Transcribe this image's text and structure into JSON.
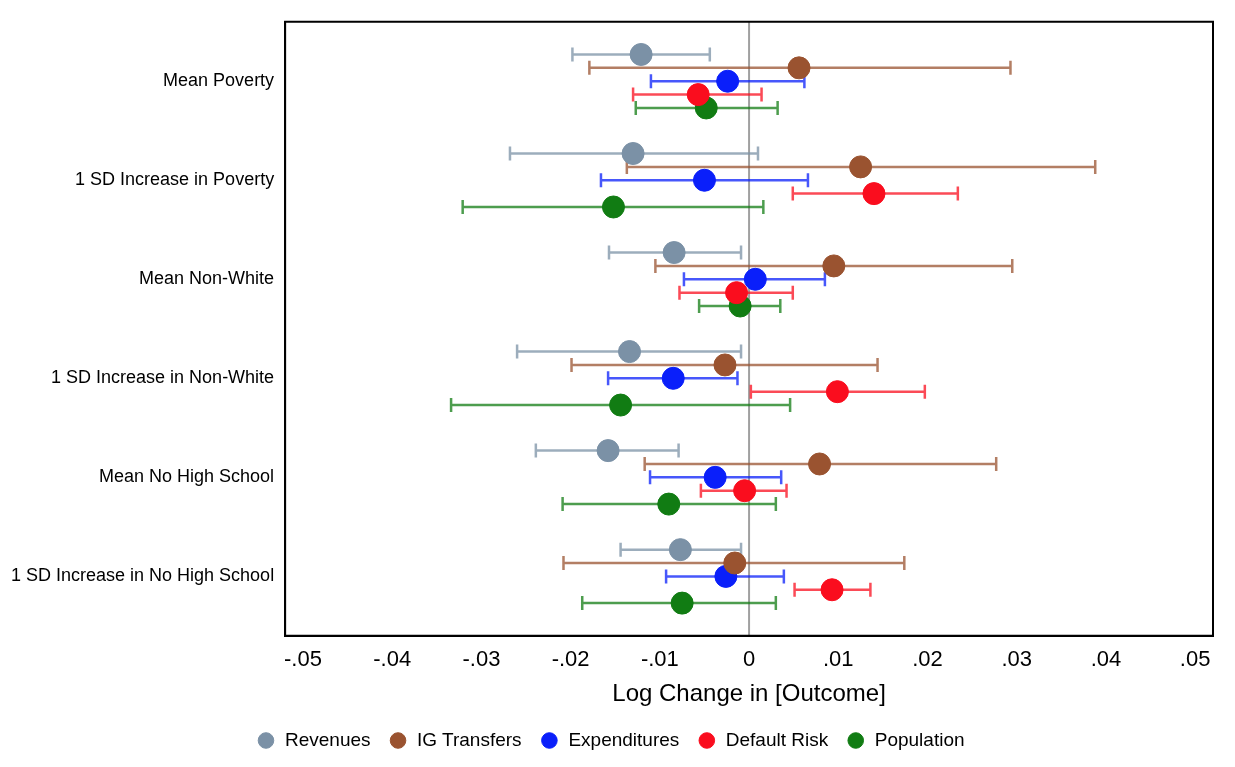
{
  "chart_data": {
    "type": "scatter",
    "orientation": "horizontal",
    "xlabel": "Log Change in [Outcome]",
    "categories": [
      "Mean Poverty",
      "1 SD Increase in Poverty",
      "Mean Non-White",
      "1 SD Increase in Non-White",
      "Mean No High School",
      "1 SD Increase in No High School"
    ],
    "series": [
      {
        "name": "Revenues",
        "color": "#7b91a6",
        "values": [
          -0.0121,
          -0.013,
          -0.0084,
          -0.0134,
          -0.0158,
          -0.0077
        ],
        "errors": [
          [
            -0.0198,
            -0.0044
          ],
          [
            -0.0268,
            0.001
          ],
          [
            -0.0157,
            -0.0009
          ],
          [
            -0.026,
            -0.0009
          ],
          [
            -0.0239,
            -0.0079
          ],
          [
            -0.0144,
            -0.0009
          ]
        ]
      },
      {
        "name": "IG Transfers",
        "color": "#9a5330",
        "values": [
          0.0056,
          0.0125,
          0.0095,
          -0.0027,
          0.0079,
          -0.0016
        ],
        "errors": [
          [
            -0.0179,
            0.0293
          ],
          [
            -0.0137,
            0.0388
          ],
          [
            -0.0105,
            0.0295
          ],
          [
            -0.0199,
            0.0144
          ],
          [
            -0.0117,
            0.0277
          ],
          [
            -0.0208,
            0.0174
          ]
        ]
      },
      {
        "name": "Expenditures",
        "color": "#0a1ffa",
        "values": [
          -0.0024,
          -0.005,
          0.0007,
          -0.0085,
          -0.0038,
          -0.0026
        ],
        "errors": [
          [
            -0.011,
            0.0062
          ],
          [
            -0.0166,
            0.0066
          ],
          [
            -0.0073,
            0.0085
          ],
          [
            -0.0158,
            -0.0013
          ],
          [
            -0.0111,
            0.0036
          ],
          [
            -0.0093,
            0.0039
          ]
        ]
      },
      {
        "name": "Default Risk",
        "color": "#fa0d1e",
        "values": [
          -0.0057,
          0.014,
          -0.0014,
          0.0099,
          -0.0005,
          0.0093
        ],
        "errors": [
          [
            -0.013,
            0.0014
          ],
          [
            0.0049,
            0.0234
          ],
          [
            -0.0078,
            0.0049
          ],
          [
            0.0002,
            0.0197
          ],
          [
            -0.0054,
            0.0042
          ],
          [
            0.0051,
            0.0136
          ]
        ]
      },
      {
        "name": "Population",
        "color": "#117c13",
        "values": [
          -0.0048,
          -0.0152,
          -0.001,
          -0.0144,
          -0.009,
          -0.0075
        ],
        "errors": [
          [
            -0.0127,
            0.0032
          ],
          [
            -0.0321,
            0.0016
          ],
          [
            -0.0056,
            0.0035
          ],
          [
            -0.0334,
            0.0046
          ],
          [
            -0.0209,
            0.003
          ],
          [
            -0.0187,
            0.003
          ]
        ]
      }
    ],
    "xlim": [
      -0.052,
      0.052
    ],
    "xticks": [
      {
        "value": -0.05,
        "label": "-.05"
      },
      {
        "value": -0.04,
        "label": "-.04"
      },
      {
        "value": -0.03,
        "label": "-.03"
      },
      {
        "value": -0.02,
        "label": "-.02"
      },
      {
        "value": -0.01,
        "label": "-.01"
      },
      0,
      {
        "value": 0.01,
        "label": ".01"
      },
      {
        "value": 0.02,
        "label": ".02"
      },
      {
        "value": 0.03,
        "label": ".03"
      },
      {
        "value": 0.04,
        "label": ".04"
      },
      {
        "value": 0.05,
        "label": ".05"
      }
    ],
    "ref_lines": [
      {
        "axis": "x",
        "value": 0,
        "color": "#a0a0a0"
      }
    ],
    "grid": false,
    "legend": "bottom",
    "marker": "circle"
  }
}
